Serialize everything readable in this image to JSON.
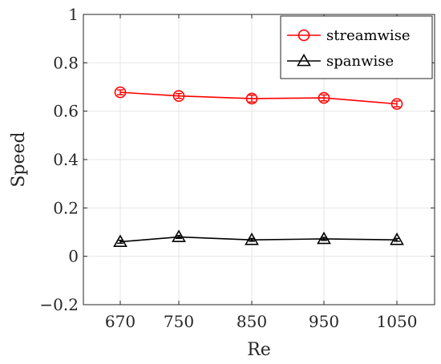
{
  "chart_data": {
    "type": "line",
    "xlabel": "Re",
    "ylabel": "Speed",
    "x": [
      670,
      750,
      850,
      950,
      1050
    ],
    "xticks": [
      "670",
      "750",
      "850",
      "950",
      "1050"
    ],
    "yticks": [
      "−0.2",
      "0",
      "0.2",
      "0.4",
      "0.6",
      "0.8",
      "1"
    ],
    "ylim": [
      -0.2,
      1
    ],
    "grid": true,
    "legend_position": "top-right",
    "series": [
      {
        "name": "streamwise",
        "marker": "circle",
        "color": "#ff0000",
        "values": [
          0.678,
          0.663,
          0.652,
          0.655,
          0.63
        ],
        "error": [
          0.01,
          0.01,
          0.014,
          0.012,
          0.012
        ]
      },
      {
        "name": "spanwise",
        "marker": "triangle",
        "color": "#000000",
        "values": [
          0.06,
          0.08,
          0.068,
          0.072,
          0.068
        ],
        "error": [
          0.006,
          0.006,
          0.006,
          0.006,
          0.006
        ]
      }
    ]
  }
}
